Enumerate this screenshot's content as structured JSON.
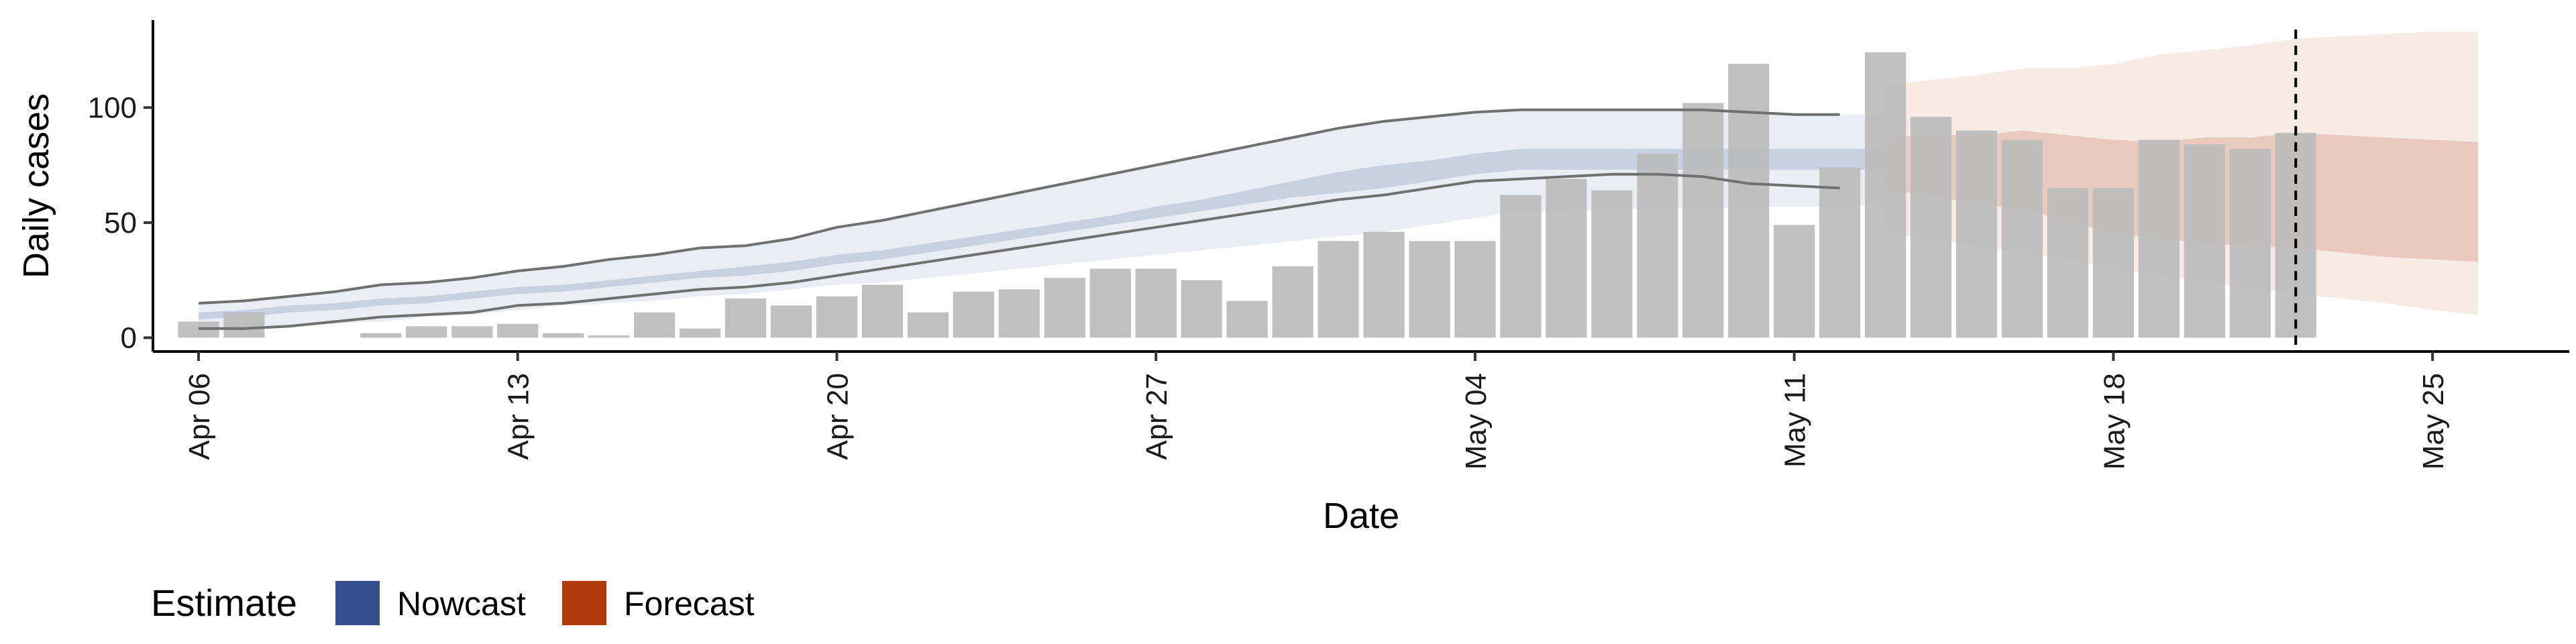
{
  "chart_data": {
    "type": "bar",
    "xlabel": "Date",
    "ylabel": "Daily cases",
    "ylim": [
      -6,
      138
    ],
    "yticks": [
      0,
      50,
      100
    ],
    "xlim": [
      "2020-04-05",
      "2020-05-28"
    ],
    "xticks": [
      {
        "date": "2020-04-06",
        "label": "Apr 06"
      },
      {
        "date": "2020-04-13",
        "label": "Apr 13"
      },
      {
        "date": "2020-04-20",
        "label": "Apr 20"
      },
      {
        "date": "2020-04-27",
        "label": "Apr 27"
      },
      {
        "date": "2020-05-04",
        "label": "May 04"
      },
      {
        "date": "2020-05-11",
        "label": "May 11"
      },
      {
        "date": "2020-05-18",
        "label": "May 18"
      },
      {
        "date": "2020-05-25",
        "label": "May 25"
      }
    ],
    "bars": {
      "dates": [
        "2020-04-06",
        "2020-04-07",
        "2020-04-08",
        "2020-04-09",
        "2020-04-10",
        "2020-04-11",
        "2020-04-12",
        "2020-04-13",
        "2020-04-14",
        "2020-04-15",
        "2020-04-16",
        "2020-04-17",
        "2020-04-18",
        "2020-04-19",
        "2020-04-20",
        "2020-04-21",
        "2020-04-22",
        "2020-04-23",
        "2020-04-24",
        "2020-04-25",
        "2020-04-26",
        "2020-04-27",
        "2020-04-28",
        "2020-04-29",
        "2020-04-30",
        "2020-05-01",
        "2020-05-02",
        "2020-05-03",
        "2020-05-04",
        "2020-05-05",
        "2020-05-06",
        "2020-05-07",
        "2020-05-08",
        "2020-05-09",
        "2020-05-10",
        "2020-05-11",
        "2020-05-12",
        "2020-05-13",
        "2020-05-14",
        "2020-05-15",
        "2020-05-16",
        "2020-05-17",
        "2020-05-18",
        "2020-05-19",
        "2020-05-20",
        "2020-05-21",
        "2020-05-22"
      ],
      "values": [
        7,
        11,
        0,
        0,
        2,
        5,
        5,
        6,
        2,
        1,
        11,
        4,
        17,
        14,
        18,
        23,
        11,
        20,
        21,
        26,
        30,
        30,
        25,
        16,
        31,
        42,
        46,
        42,
        42,
        62,
        69,
        64,
        80,
        102,
        119,
        49,
        74,
        124,
        96,
        90,
        86,
        65,
        65,
        86,
        84,
        82,
        89
      ]
    },
    "series": [
      {
        "name": "Nowcast",
        "dates": [
          "2020-04-06",
          "2020-04-07",
          "2020-04-08",
          "2020-04-09",
          "2020-04-10",
          "2020-04-11",
          "2020-04-12",
          "2020-04-13",
          "2020-04-14",
          "2020-04-15",
          "2020-04-16",
          "2020-04-17",
          "2020-04-18",
          "2020-04-19",
          "2020-04-20",
          "2020-04-21",
          "2020-04-22",
          "2020-04-23",
          "2020-04-24",
          "2020-04-25",
          "2020-04-26",
          "2020-04-27",
          "2020-04-28",
          "2020-04-29",
          "2020-04-30",
          "2020-05-01",
          "2020-05-02",
          "2020-05-03",
          "2020-05-04",
          "2020-05-05",
          "2020-05-06",
          "2020-05-07",
          "2020-05-08",
          "2020-05-09",
          "2020-05-10",
          "2020-05-11",
          "2020-05-12",
          "2020-05-13"
        ],
        "lower90": [
          4,
          4,
          5,
          6,
          7,
          9,
          10,
          12,
          14,
          15,
          16,
          18,
          19,
          21,
          23,
          24,
          26,
          28,
          30,
          32,
          34,
          36,
          38,
          40,
          42,
          44,
          46,
          49,
          52,
          55,
          55,
          56,
          56,
          56,
          57,
          57,
          57,
          58
        ],
        "upper90": [
          15,
          16,
          18,
          20,
          23,
          24,
          26,
          29,
          31,
          34,
          36,
          39,
          40,
          43,
          48,
          51,
          55,
          59,
          63,
          67,
          71,
          75,
          79,
          83,
          87,
          91,
          94,
          96,
          98,
          99,
          99,
          99,
          99,
          99,
          98,
          97,
          97,
          97
        ],
        "lower50": [
          8,
          9,
          11,
          12,
          14,
          15,
          17,
          19,
          20,
          22,
          24,
          26,
          27,
          29,
          32,
          34,
          37,
          40,
          43,
          46,
          49,
          52,
          55,
          58,
          61,
          63,
          65,
          68,
          71,
          73,
          73,
          73,
          73,
          73,
          73,
          73,
          73,
          73
        ],
        "upper50": [
          11,
          12,
          14,
          15,
          17,
          18,
          20,
          22,
          23,
          25,
          27,
          29,
          31,
          33,
          36,
          38,
          41,
          44,
          47,
          50,
          53,
          57,
          60,
          64,
          68,
          72,
          75,
          77,
          80,
          82,
          82,
          82,
          82,
          82,
          82,
          82,
          82,
          82
        ]
      },
      {
        "name": "Forecast",
        "dates": [
          "2020-05-13",
          "2020-05-14",
          "2020-05-15",
          "2020-05-16",
          "2020-05-17",
          "2020-05-18",
          "2020-05-19",
          "2020-05-20",
          "2020-05-21",
          "2020-05-22",
          "2020-05-23",
          "2020-05-24",
          "2020-05-25",
          "2020-05-26"
        ],
        "lower90": [
          45,
          43,
          40,
          37,
          34,
          30,
          27,
          24,
          22,
          19,
          17,
          15,
          12,
          10
        ],
        "upper90": [
          110,
          112,
          114,
          117,
          117,
          119,
          123,
          125,
          127,
          130,
          131,
          132,
          133,
          133
        ],
        "lower50": [
          64,
          62,
          58,
          56,
          51,
          45,
          43,
          41,
          40,
          39,
          37,
          35,
          34,
          33
        ],
        "upper50": [
          87,
          88,
          88,
          90,
          88,
          86,
          85,
          87,
          87,
          89,
          88,
          87,
          86,
          85
        ]
      }
    ],
    "extra_lines": {
      "dates": [
        "2020-04-06",
        "2020-04-07",
        "2020-04-08",
        "2020-04-09",
        "2020-04-10",
        "2020-04-11",
        "2020-04-12",
        "2020-04-13",
        "2020-04-14",
        "2020-04-15",
        "2020-04-16",
        "2020-04-17",
        "2020-04-18",
        "2020-04-19",
        "2020-04-20",
        "2020-04-21",
        "2020-04-22",
        "2020-04-23",
        "2020-04-24",
        "2020-04-25",
        "2020-04-26",
        "2020-04-27",
        "2020-04-28",
        "2020-04-29",
        "2020-04-30",
        "2020-05-01",
        "2020-05-02",
        "2020-05-03",
        "2020-05-04",
        "2020-05-05",
        "2020-05-06",
        "2020-05-07",
        "2020-05-08",
        "2020-05-09",
        "2020-05-10",
        "2020-05-11",
        "2020-05-12"
      ],
      "upper": [
        15,
        16,
        18,
        20,
        23,
        24,
        26,
        29,
        31,
        34,
        36,
        39,
        40,
        43,
        48,
        51,
        55,
        59,
        63,
        67,
        71,
        75,
        79,
        83,
        87,
        91,
        94,
        96,
        98,
        99,
        99,
        99,
        99,
        99,
        98,
        97,
        97
      ],
      "lower": [
        4,
        4,
        5,
        7,
        9,
        10,
        11,
        14,
        15,
        17,
        19,
        21,
        22,
        24,
        27,
        30,
        33,
        36,
        39,
        42,
        45,
        48,
        51,
        54,
        57,
        60,
        62,
        65,
        68,
        69,
        70,
        71,
        71,
        70,
        67,
        66,
        65
      ]
    },
    "vline": "2020-05-22",
    "legend": {
      "title": "Estimate",
      "position": "bottom-left",
      "entries": [
        {
          "label": "Nowcast",
          "color": "#354f8f"
        },
        {
          "label": "Forecast",
          "color": "#b1390b"
        }
      ]
    },
    "colors": {
      "bars": "#bdbdbd",
      "nowcast": "#354f8f",
      "forecast": "#b1390b",
      "lines": "#707070"
    },
    "grid": false
  }
}
